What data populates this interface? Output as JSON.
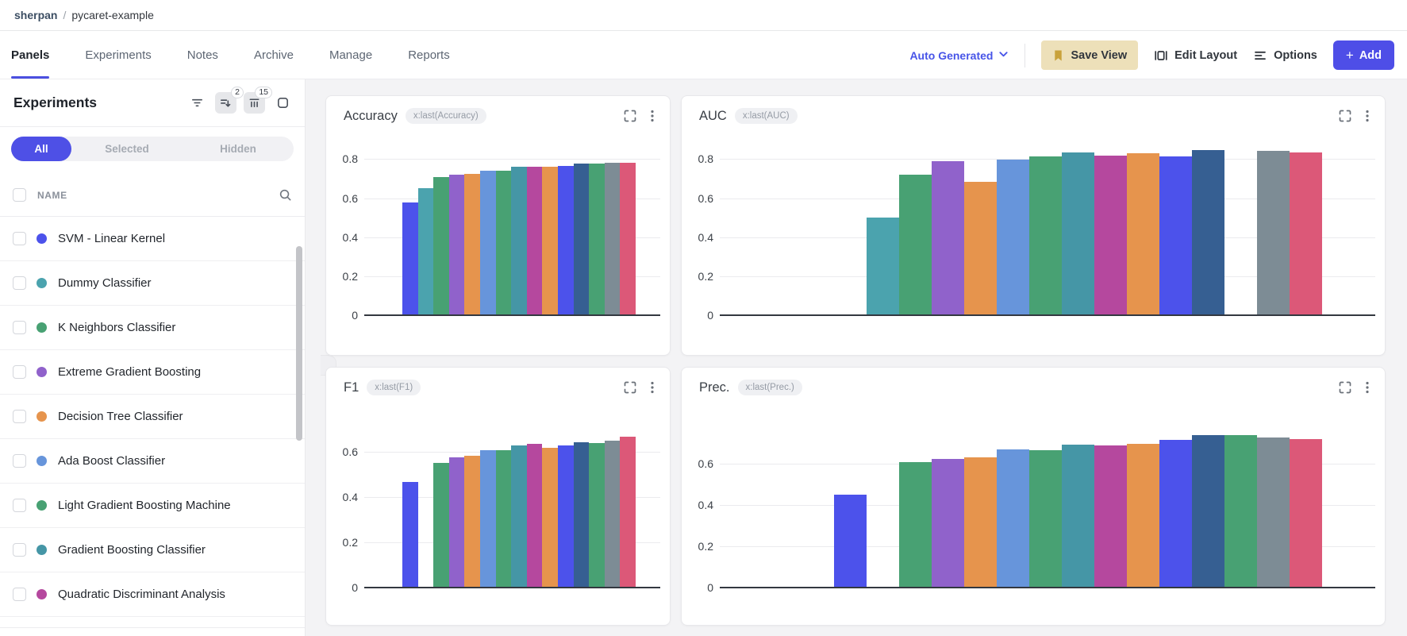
{
  "breadcrumb": {
    "entity": "sherpan",
    "separator": "/",
    "project": "pycaret-example"
  },
  "tabs": [
    {
      "label": "Panels",
      "active": true
    },
    {
      "label": "Experiments",
      "active": false
    },
    {
      "label": "Notes",
      "active": false
    },
    {
      "label": "Archive",
      "active": false
    },
    {
      "label": "Manage",
      "active": false
    },
    {
      "label": "Reports",
      "active": false
    }
  ],
  "toolbar": {
    "view_selector_label": "Auto Generated",
    "save_view_label": "Save View",
    "edit_layout_label": "Edit Layout",
    "options_label": "Options",
    "add_plus": "+",
    "add_label": "Add"
  },
  "sidebar": {
    "title": "Experiments",
    "sort_badge": "2",
    "columns_badge": "15",
    "segments": [
      {
        "label": "All",
        "active": true
      },
      {
        "label": "Selected",
        "active": false
      },
      {
        "label": "Hidden",
        "active": false
      }
    ],
    "name_header": "NAME",
    "runs": [
      {
        "name": "SVM - Linear Kernel",
        "color": "#4C52EB"
      },
      {
        "name": "Dummy Classifier",
        "color": "#4BA3AE"
      },
      {
        "name": "K Neighbors Classifier",
        "color": "#48A173"
      },
      {
        "name": "Extreme Gradient Boosting",
        "color": "#9062CB"
      },
      {
        "name": "Decision Tree Classifier",
        "color": "#E6944D"
      },
      {
        "name": "Ada Boost Classifier",
        "color": "#6795DB"
      },
      {
        "name": "Light Gradient Boosting Machine",
        "color": "#48A173"
      },
      {
        "name": "Gradient Boosting Classifier",
        "color": "#4596A6"
      },
      {
        "name": "Quadratic Discriminant Analysis",
        "color": "#B5489E"
      }
    ]
  },
  "palette": {
    "bar_colors": [
      "#4C52EB",
      "#4BA3AE",
      "#48A173",
      "#9062CB",
      "#E6944D",
      "#6795DB",
      "#48A173",
      "#4596A6",
      "#B5489E",
      "#E6944D",
      "#4C52EB",
      "#365F92",
      "#48A173",
      "#7D8C95",
      "#DC5878"
    ]
  },
  "chart_data": [
    {
      "type": "bar",
      "title": "Accuracy",
      "tag": "x:last(Accuracy)",
      "xlabel": "",
      "ylabel": "",
      "grid": true,
      "legend": false,
      "yticks": [
        0,
        0.2,
        0.4,
        0.6,
        0.8
      ],
      "ylim": [
        0,
        0.92
      ],
      "values": [
        0.58,
        0.65,
        0.71,
        0.72,
        0.725,
        0.74,
        0.742,
        0.76,
        0.762,
        0.762,
        0.766,
        0.778,
        0.777,
        0.782,
        0.782
      ]
    },
    {
      "type": "bar",
      "title": "AUC",
      "tag": "x:last(AUC)",
      "xlabel": "",
      "ylabel": "",
      "grid": true,
      "legend": false,
      "yticks": [
        0,
        0.2,
        0.4,
        0.6,
        0.8
      ],
      "ylim": [
        0,
        0.92
      ],
      "values": [
        null,
        0.5,
        0.72,
        0.79,
        0.685,
        0.8,
        0.815,
        0.835,
        0.82,
        0.83,
        0.815,
        0.845,
        null,
        0.842,
        0.835
      ]
    },
    {
      "type": "bar",
      "title": "F1",
      "tag": "x:last(F1)",
      "xlabel": "",
      "ylabel": "",
      "grid": true,
      "legend": false,
      "yticks": [
        0,
        0.2,
        0.4,
        0.6
      ],
      "ylim": [
        0,
        0.77
      ],
      "values": [
        0.467,
        null,
        0.553,
        0.578,
        0.583,
        0.61,
        0.608,
        0.63,
        0.635,
        0.62,
        0.628,
        0.642,
        0.641,
        0.65,
        0.669
      ]
    },
    {
      "type": "bar",
      "title": "Prec.",
      "tag": "x:last(Prec.)",
      "xlabel": "",
      "ylabel": "",
      "grid": true,
      "legend": false,
      "yticks": [
        0,
        0.2,
        0.4,
        0.6
      ],
      "ylim": [
        0,
        0.84
      ],
      "values": [
        0.45,
        null,
        0.607,
        0.623,
        0.628,
        0.668,
        0.663,
        0.69,
        0.686,
        0.695,
        0.715,
        0.735,
        0.735,
        0.727,
        0.717
      ]
    }
  ]
}
